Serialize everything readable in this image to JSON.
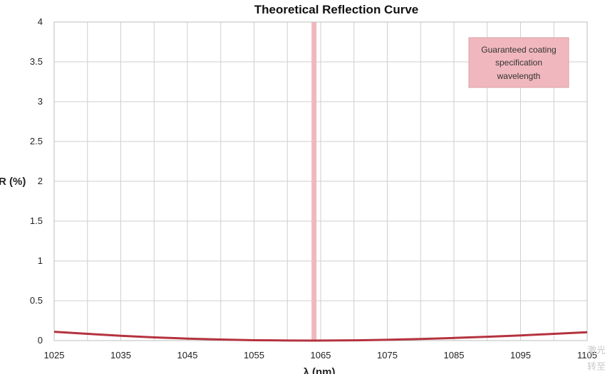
{
  "chart_data": {
    "type": "line",
    "title": "Theoretical Reflection Curve",
    "xlabel": "λ (nm)",
    "ylabel": "R (%)",
    "xlim": [
      1025,
      1105
    ],
    "ylim": [
      0,
      4
    ],
    "x_ticks": [
      "1025",
      "1035",
      "1045",
      "1055",
      "1065",
      "1075",
      "1085",
      "1095",
      "1105"
    ],
    "y_ticks": [
      "0",
      "0.5",
      "1",
      "1.5",
      "2",
      "2.5",
      "3",
      "3.5",
      "4"
    ],
    "grid": true,
    "series": [
      {
        "color": "#b5323f",
        "x": [
          1025,
          1030,
          1035,
          1040,
          1045,
          1050,
          1055,
          1060,
          1064,
          1070,
          1075,
          1080,
          1085,
          1090,
          1095,
          1100,
          1105
        ],
        "y": [
          0.11,
          0.085,
          0.06,
          0.04,
          0.025,
          0.013,
          0.005,
          0.001,
          0.0,
          0.003,
          0.01,
          0.02,
          0.033,
          0.048,
          0.065,
          0.085,
          0.105
        ]
      }
    ],
    "annotation": {
      "text_lines": [
        "Guaranteed coating",
        "specification",
        "wavelength"
      ],
      "wavelength": 1064,
      "color": "#f0b8be",
      "border": "#d9a0a6"
    }
  },
  "watermark": [
    "激光",
    "转至"
  ]
}
